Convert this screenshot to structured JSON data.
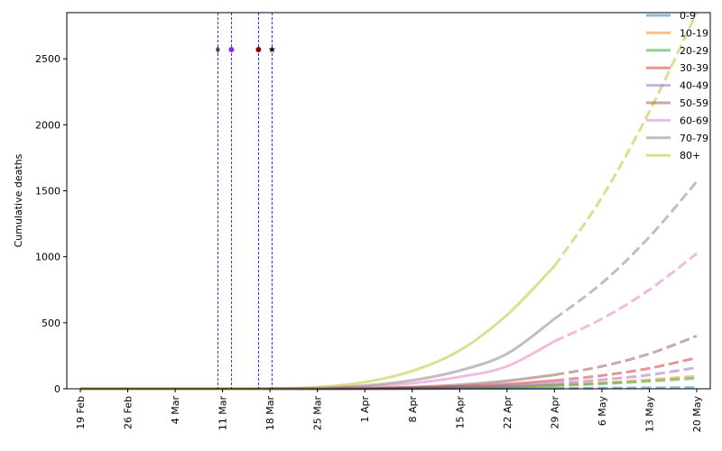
{
  "chart_data": {
    "type": "line",
    "title": "",
    "xlabel": "",
    "ylabel": "Cumulative deaths",
    "x_ticks": [
      "19 Feb",
      "26 Feb",
      "4 Mar",
      "11 Mar",
      "18 Mar",
      "25 Mar",
      "1 Apr",
      "8 Apr",
      "15 Apr",
      "22 Apr",
      "29 Apr",
      "6 May",
      "13 May",
      "20 May"
    ],
    "x_tick_values": [
      0,
      7,
      14,
      21,
      28,
      35,
      42,
      49,
      56,
      63,
      70,
      77,
      84,
      91
    ],
    "xlim": [
      -2,
      93
    ],
    "ylim": [
      0,
      2850
    ],
    "y_ticks": [
      0,
      500,
      1000,
      1500,
      2000,
      2500
    ],
    "legend_position": "top-right",
    "grid": false,
    "x": [
      0,
      7,
      14,
      21,
      28,
      35,
      42,
      49,
      56,
      63,
      70,
      77,
      84,
      91
    ],
    "solid_until": 70,
    "series": [
      {
        "name": "0-9",
        "color": "#1f77b4",
        "values": [
          0,
          0,
          0,
          0,
          0,
          0,
          0,
          0,
          1,
          2,
          3,
          5,
          7,
          9
        ]
      },
      {
        "name": "10-19",
        "color": "#ff7f0e",
        "values": [
          0,
          0,
          0,
          0,
          0,
          0,
          1,
          3,
          8,
          16,
          28,
          45,
          68,
          95
        ]
      },
      {
        "name": "20-29",
        "color": "#2ca02c",
        "values": [
          0,
          0,
          0,
          0,
          0,
          0,
          1,
          3,
          7,
          14,
          24,
          38,
          57,
          80
        ]
      },
      {
        "name": "30-39",
        "color": "#d62728",
        "values": [
          0,
          0,
          0,
          0,
          0,
          1,
          3,
          8,
          18,
          36,
          62,
          100,
          155,
          235
        ]
      },
      {
        "name": "40-49",
        "color": "#9467bd",
        "values": [
          0,
          0,
          0,
          0,
          0,
          0,
          2,
          5,
          12,
          24,
          42,
          68,
          105,
          160
        ]
      },
      {
        "name": "50-59",
        "color": "#8c564b",
        "values": [
          0,
          0,
          0,
          0,
          0,
          1,
          5,
          13,
          30,
          60,
          105,
          170,
          265,
          400
        ]
      },
      {
        "name": "60-69",
        "color": "#e377c2",
        "values": [
          0,
          0,
          0,
          0,
          1,
          4,
          16,
          42,
          90,
          170,
          360,
          530,
          750,
          1025
        ]
      },
      {
        "name": "70-79",
        "color": "#7f7f7f",
        "values": [
          0,
          0,
          0,
          0,
          1,
          6,
          24,
          64,
          138,
          265,
          530,
          800,
          1150,
          1570
        ]
      },
      {
        "name": "80+",
        "color": "#bcbd22",
        "values": [
          0,
          0,
          0,
          0,
          2,
          12,
          50,
          135,
          290,
          560,
          930,
          1450,
          2100,
          2850
        ]
      }
    ],
    "vertical_lines": [
      {
        "x": 20.3,
        "color": "#0000ff"
      },
      {
        "x": 22.3,
        "color": "#0000ff"
      },
      {
        "x": 26.3,
        "color": "#0000ff"
      },
      {
        "x": 28.3,
        "color": "#0000ff"
      }
    ],
    "markers": [
      {
        "x": 20.3,
        "y": 2570,
        "shape": "diamond",
        "color": "#2f4f4f"
      },
      {
        "x": 22.3,
        "y": 2570,
        "shape": "circle",
        "color": "#7b2ff7"
      },
      {
        "x": 26.3,
        "y": 2570,
        "shape": "circle",
        "color": "#8b0000"
      },
      {
        "x": 28.3,
        "y": 2570,
        "shape": "star",
        "color": "#000000"
      }
    ]
  }
}
